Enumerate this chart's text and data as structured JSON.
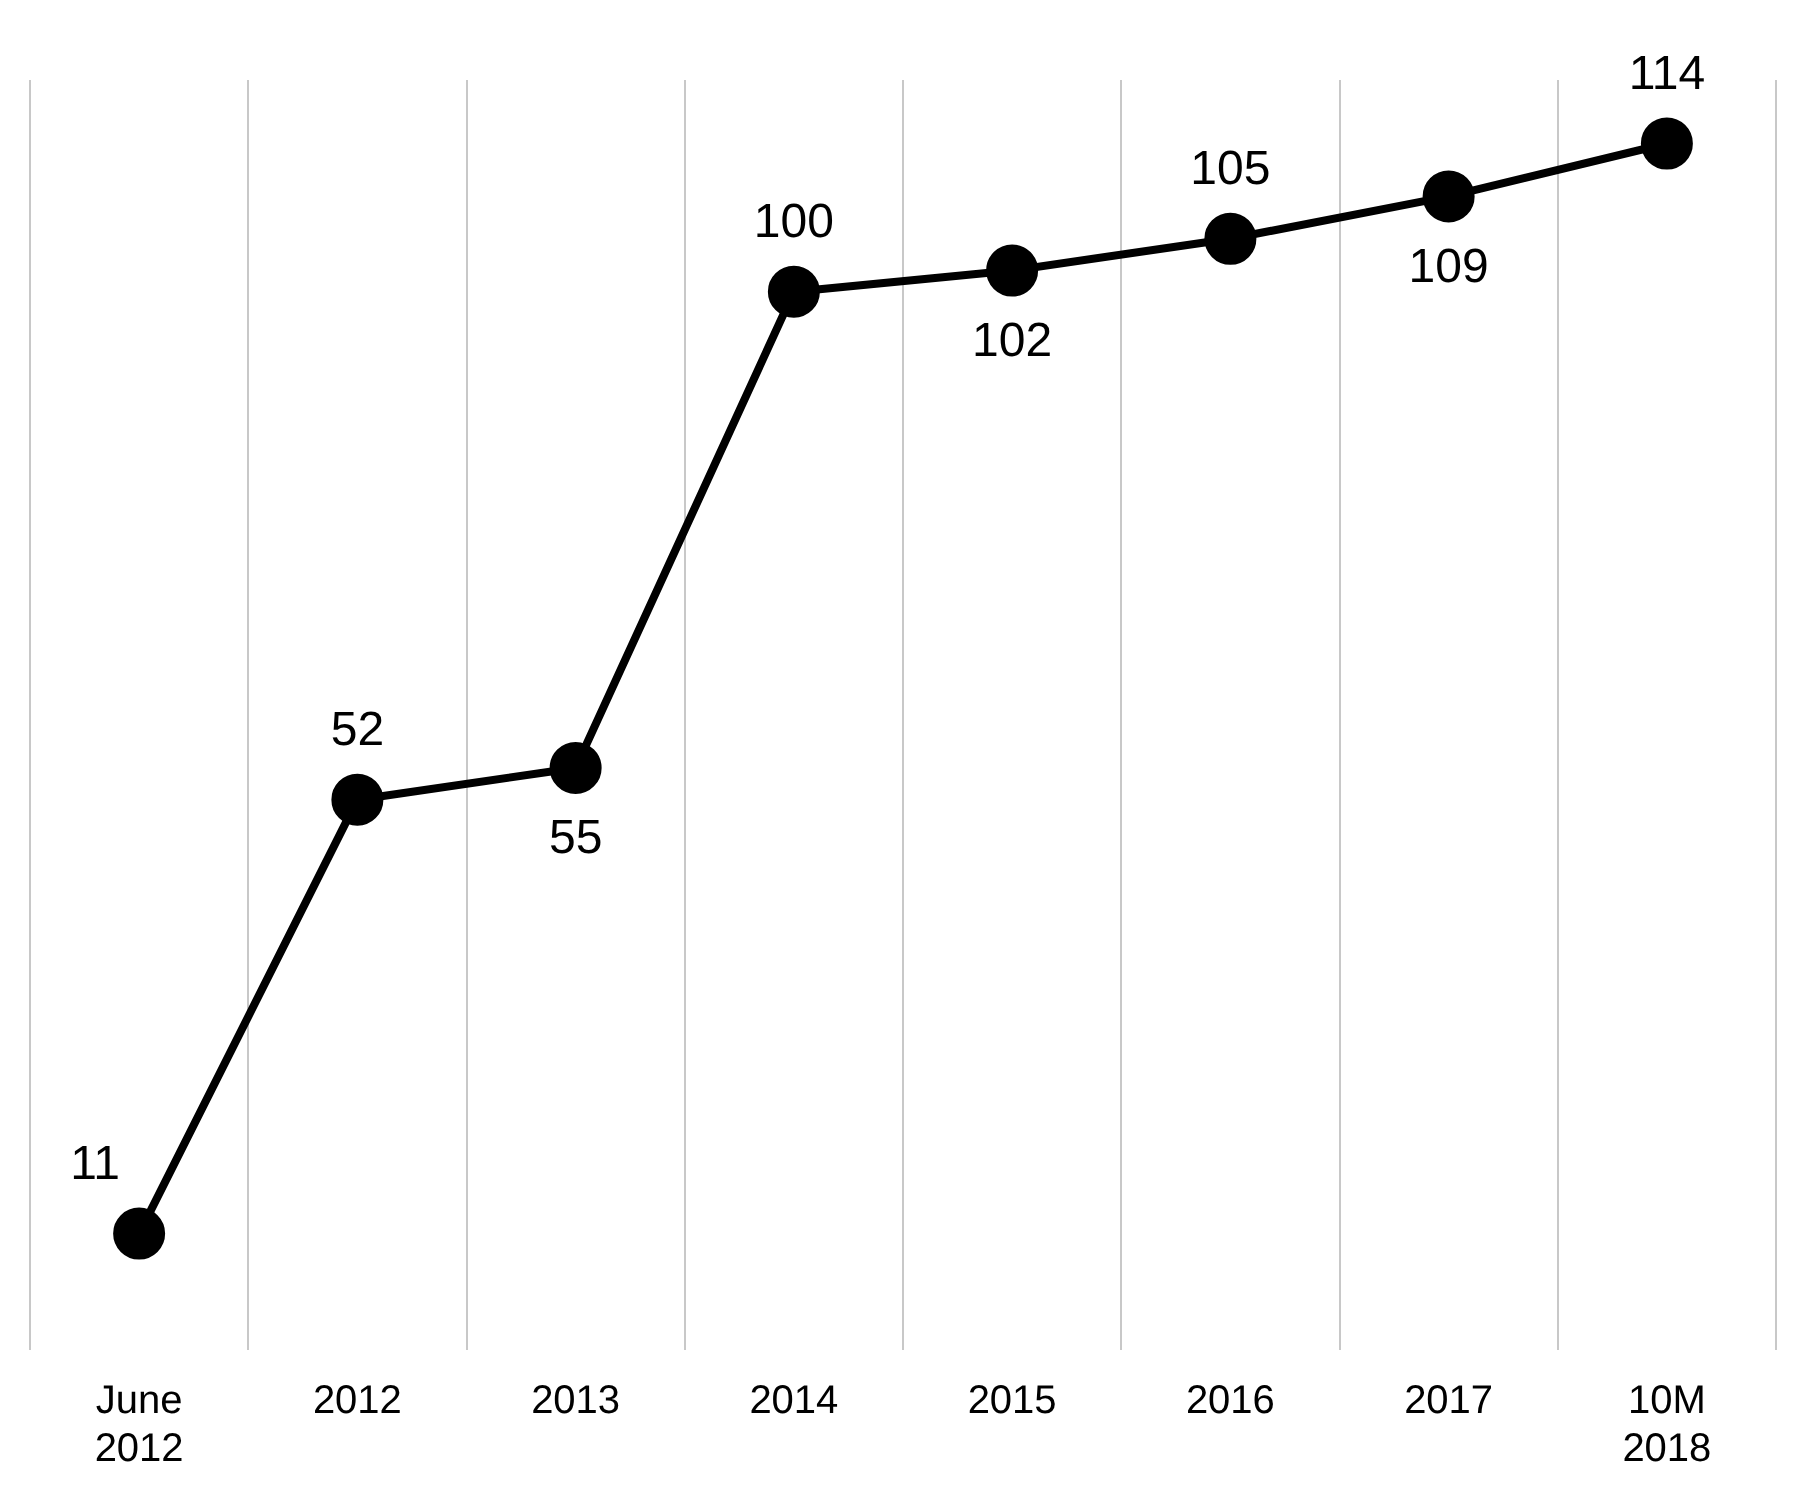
{
  "chart_data": {
    "type": "line",
    "categories": [
      "June 2012",
      "2012",
      "2013",
      "2014",
      "2015",
      "2016",
      "2017",
      "10M 2018"
    ],
    "series": [
      {
        "color": "#000000",
        "values": [
          11,
          52,
          55,
          100,
          102,
          105,
          109,
          114
        ]
      }
    ],
    "data_labels": true,
    "grid": "x",
    "legend": false,
    "marker": "circle",
    "line_style": "solid"
  }
}
